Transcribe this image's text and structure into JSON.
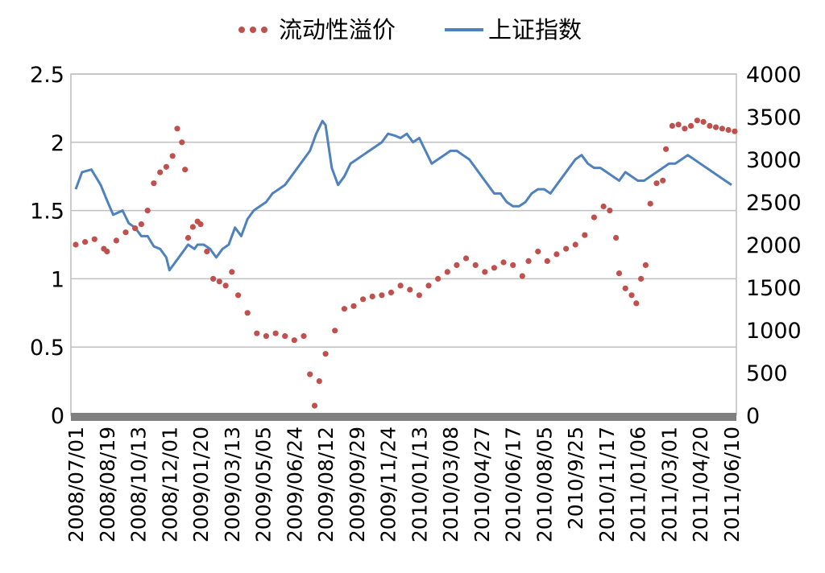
{
  "chart_data": {
    "type": "line",
    "legend": {
      "placement": "top",
      "entries": [
        {
          "name": "流动性溢价",
          "style": "dotted",
          "color": "#C0504D"
        },
        {
          "name": "上证指数",
          "style": "solid",
          "color": "#4F81BD"
        }
      ]
    },
    "x_ticks": [
      "2008/07/01",
      "2008/08/19",
      "2008/10/13",
      "2008/12/01",
      "2009/01/20",
      "2009/03/13",
      "2009/05/05",
      "2009/06/24",
      "2009/08/12",
      "2009/09/29",
      "2009/11/24",
      "2010/01/13",
      "2010/03/08",
      "2010/04/27",
      "2010/06/17",
      "2010/08/05",
      "2010/9/25",
      "2010/11/17",
      "2011/01/06",
      "2011/03/01",
      "2011/04/20",
      "2011/06/10"
    ],
    "y_left": {
      "min": 0,
      "max": 2.5,
      "ticks": [
        "0",
        "0.5",
        "1",
        "1.5",
        "2",
        "2.5"
      ]
    },
    "y_right": {
      "min": 0,
      "max": 4000,
      "ticks": [
        "0",
        "500",
        "1000",
        "1500",
        "2000",
        "2500",
        "3000",
        "3500",
        "4000"
      ]
    },
    "grid": true,
    "series": [
      {
        "name": "流动性溢价",
        "axis": "left",
        "color": "#C0504D",
        "points": [
          [
            0,
            1.25
          ],
          [
            0.3,
            1.27
          ],
          [
            0.6,
            1.29
          ],
          [
            0.9,
            1.22
          ],
          [
            1.0,
            1.2
          ],
          [
            1.3,
            1.28
          ],
          [
            1.6,
            1.34
          ],
          [
            1.9,
            1.37
          ],
          [
            2.1,
            1.4
          ],
          [
            2.3,
            1.5
          ],
          [
            2.5,
            1.7
          ],
          [
            2.7,
            1.78
          ],
          [
            2.9,
            1.82
          ],
          [
            3.1,
            1.9
          ],
          [
            3.25,
            2.1
          ],
          [
            3.4,
            2.0
          ],
          [
            3.5,
            1.8
          ],
          [
            3.6,
            1.3
          ],
          [
            3.75,
            1.38
          ],
          [
            3.9,
            1.42
          ],
          [
            4.0,
            1.4
          ],
          [
            4.2,
            1.2
          ],
          [
            4.4,
            1.0
          ],
          [
            4.6,
            0.98
          ],
          [
            4.8,
            0.95
          ],
          [
            5.0,
            1.05
          ],
          [
            5.2,
            0.88
          ],
          [
            5.5,
            0.75
          ],
          [
            5.8,
            0.6
          ],
          [
            6.1,
            0.58
          ],
          [
            6.4,
            0.6
          ],
          [
            6.7,
            0.58
          ],
          [
            7.0,
            0.55
          ],
          [
            7.3,
            0.58
          ],
          [
            7.5,
            0.3
          ],
          [
            7.65,
            0.07
          ],
          [
            7.8,
            0.25
          ],
          [
            8.0,
            0.45
          ],
          [
            8.3,
            0.62
          ],
          [
            8.6,
            0.78
          ],
          [
            8.9,
            0.8
          ],
          [
            9.2,
            0.85
          ],
          [
            9.5,
            0.87
          ],
          [
            9.8,
            0.88
          ],
          [
            10.1,
            0.9
          ],
          [
            10.4,
            0.95
          ],
          [
            10.7,
            0.92
          ],
          [
            11.0,
            0.88
          ],
          [
            11.3,
            0.95
          ],
          [
            11.6,
            1.0
          ],
          [
            11.9,
            1.05
          ],
          [
            12.2,
            1.1
          ],
          [
            12.5,
            1.15
          ],
          [
            12.8,
            1.1
          ],
          [
            13.1,
            1.05
          ],
          [
            13.4,
            1.08
          ],
          [
            13.7,
            1.12
          ],
          [
            14.0,
            1.1
          ],
          [
            14.3,
            1.02
          ],
          [
            14.5,
            1.13
          ],
          [
            14.8,
            1.2
          ],
          [
            15.1,
            1.13
          ],
          [
            15.4,
            1.18
          ],
          [
            15.7,
            1.22
          ],
          [
            16.0,
            1.25
          ],
          [
            16.3,
            1.32
          ],
          [
            16.6,
            1.45
          ],
          [
            16.9,
            1.53
          ],
          [
            17.1,
            1.5
          ],
          [
            17.3,
            1.3
          ],
          [
            17.4,
            1.04
          ],
          [
            17.6,
            0.93
          ],
          [
            17.8,
            0.88
          ],
          [
            17.95,
            0.82
          ],
          [
            18.1,
            1.0
          ],
          [
            18.25,
            1.1
          ],
          [
            18.4,
            1.55
          ],
          [
            18.6,
            1.7
          ],
          [
            18.8,
            1.72
          ],
          [
            18.9,
            1.95
          ],
          [
            19.1,
            2.12
          ],
          [
            19.3,
            2.13
          ],
          [
            19.5,
            2.1
          ],
          [
            19.7,
            2.12
          ],
          [
            19.9,
            2.16
          ],
          [
            20.1,
            2.15
          ],
          [
            20.3,
            2.12
          ],
          [
            20.5,
            2.11
          ],
          [
            20.7,
            2.1
          ],
          [
            20.9,
            2.09
          ],
          [
            21.1,
            2.08
          ]
        ]
      },
      {
        "name": "上证指数",
        "axis": "right",
        "color": "#4F81BD",
        "points": [
          [
            0,
            2650
          ],
          [
            0.2,
            2850
          ],
          [
            0.5,
            2880
          ],
          [
            0.8,
            2700
          ],
          [
            1.0,
            2520
          ],
          [
            1.2,
            2350
          ],
          [
            1.5,
            2400
          ],
          [
            1.7,
            2250
          ],
          [
            1.9,
            2200
          ],
          [
            2.1,
            2100
          ],
          [
            2.3,
            2100
          ],
          [
            2.5,
            1980
          ],
          [
            2.7,
            1950
          ],
          [
            2.9,
            1850
          ],
          [
            3.0,
            1700
          ],
          [
            3.2,
            1800
          ],
          [
            3.4,
            1900
          ],
          [
            3.6,
            2000
          ],
          [
            3.8,
            1950
          ],
          [
            3.9,
            2000
          ],
          [
            4.1,
            2000
          ],
          [
            4.3,
            1950
          ],
          [
            4.5,
            1850
          ],
          [
            4.7,
            1950
          ],
          [
            4.9,
            2000
          ],
          [
            5.1,
            2200
          ],
          [
            5.3,
            2100
          ],
          [
            5.5,
            2300
          ],
          [
            5.7,
            2400
          ],
          [
            5.9,
            2450
          ],
          [
            6.1,
            2500
          ],
          [
            6.3,
            2600
          ],
          [
            6.5,
            2650
          ],
          [
            6.7,
            2700
          ],
          [
            6.9,
            2800
          ],
          [
            7.1,
            2900
          ],
          [
            7.3,
            3000
          ],
          [
            7.5,
            3100
          ],
          [
            7.7,
            3300
          ],
          [
            7.9,
            3450
          ],
          [
            8.0,
            3400
          ],
          [
            8.2,
            2900
          ],
          [
            8.4,
            2700
          ],
          [
            8.6,
            2800
          ],
          [
            8.8,
            2950
          ],
          [
            9.0,
            3000
          ],
          [
            9.2,
            3050
          ],
          [
            9.4,
            3100
          ],
          [
            9.6,
            3150
          ],
          [
            9.8,
            3200
          ],
          [
            10.0,
            3300
          ],
          [
            10.2,
            3280
          ],
          [
            10.4,
            3250
          ],
          [
            10.6,
            3300
          ],
          [
            10.8,
            3200
          ],
          [
            11.0,
            3250
          ],
          [
            11.2,
            3100
          ],
          [
            11.4,
            2950
          ],
          [
            11.6,
            3000
          ],
          [
            11.8,
            3050
          ],
          [
            12.0,
            3100
          ],
          [
            12.2,
            3100
          ],
          [
            12.4,
            3050
          ],
          [
            12.6,
            3000
          ],
          [
            12.8,
            2900
          ],
          [
            13.0,
            2800
          ],
          [
            13.2,
            2700
          ],
          [
            13.4,
            2600
          ],
          [
            13.6,
            2600
          ],
          [
            13.8,
            2500
          ],
          [
            14.0,
            2450
          ],
          [
            14.2,
            2450
          ],
          [
            14.4,
            2500
          ],
          [
            14.6,
            2600
          ],
          [
            14.8,
            2650
          ],
          [
            15.0,
            2650
          ],
          [
            15.2,
            2600
          ],
          [
            15.4,
            2700
          ],
          [
            15.6,
            2800
          ],
          [
            15.8,
            2900
          ],
          [
            16.0,
            3000
          ],
          [
            16.2,
            3050
          ],
          [
            16.4,
            2950
          ],
          [
            16.6,
            2900
          ],
          [
            16.8,
            2900
          ],
          [
            17.0,
            2850
          ],
          [
            17.2,
            2800
          ],
          [
            17.4,
            2750
          ],
          [
            17.6,
            2850
          ],
          [
            17.8,
            2800
          ],
          [
            18.0,
            2750
          ],
          [
            18.2,
            2750
          ],
          [
            18.4,
            2800
          ],
          [
            18.6,
            2850
          ],
          [
            18.8,
            2900
          ],
          [
            19.0,
            2950
          ],
          [
            19.2,
            2950
          ],
          [
            19.4,
            3000
          ],
          [
            19.6,
            3050
          ],
          [
            19.8,
            3000
          ],
          [
            20.0,
            2950
          ],
          [
            20.2,
            2900
          ],
          [
            20.4,
            2850
          ],
          [
            20.6,
            2800
          ],
          [
            20.8,
            2750
          ],
          [
            21.0,
            2700
          ]
        ]
      }
    ]
  }
}
